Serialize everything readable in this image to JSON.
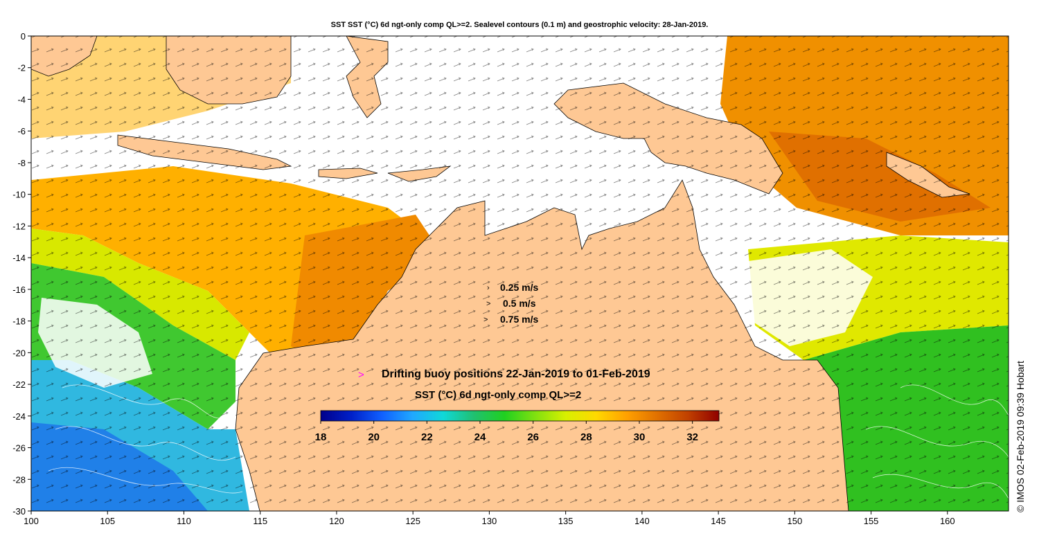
{
  "title": "SST SST (°C) 6d ngt-only comp QL>=2. Sealevel contours (0.1 m) and geostrophic velocity: 28-Jan-2019.",
  "axes": {
    "x_ticks": [
      "100",
      "105",
      "110",
      "115",
      "120",
      "125",
      "130",
      "135",
      "140",
      "145",
      "150",
      "155",
      "160"
    ],
    "x_values": [
      100,
      105,
      110,
      115,
      120,
      125,
      130,
      135,
      140,
      145,
      150,
      155,
      160
    ],
    "x_range": [
      100,
      164
    ],
    "y_ticks": [
      "0",
      "-2",
      "-4",
      "-6",
      "-8",
      "-10",
      "-12",
      "-14",
      "-16",
      "-18",
      "-20",
      "-22",
      "-24",
      "-26",
      "-28",
      "-30"
    ],
    "y_values": [
      0,
      -2,
      -4,
      -6,
      -8,
      -10,
      -12,
      -14,
      -16,
      -18,
      -20,
      -22,
      -24,
      -26,
      -28,
      -30
    ],
    "y_range": [
      -30,
      0
    ]
  },
  "velocity_legend": {
    "items": [
      {
        "label": "0.25 m/s",
        "arrow": "›"
      },
      {
        "label": "0.5 m/s",
        "arrow": ">"
      },
      {
        "label": "0.75 m/s",
        "arrow": ">"
      }
    ]
  },
  "buoy_legend": {
    "marker": ">",
    "marker_color": "#ff00ff",
    "label": "Drifting buoy positions 22-Jan-2019 to 01-Feb-2019"
  },
  "colorbar": {
    "title": "SST (°C) 6d ngt-only comp QL>=2",
    "min": 18,
    "max": 33,
    "tick_labels": [
      "18",
      "20",
      "22",
      "24",
      "26",
      "28",
      "30",
      "32"
    ],
    "tick_values": [
      18,
      20,
      22,
      24,
      26,
      28,
      30,
      32
    ],
    "colors": [
      "#00008b",
      "#0020c8",
      "#1060ff",
      "#20a8ff",
      "#10d8d8",
      "#20c070",
      "#20d020",
      "#80e010",
      "#d8f000",
      "#ffd800",
      "#ffa000",
      "#e07000",
      "#c04000",
      "#900000"
    ]
  },
  "colors": {
    "land": "#fec894",
    "no_data": "#ffffff"
  },
  "copyright": "© IMOS 02-Feb-2019 09:39 Hobart"
}
